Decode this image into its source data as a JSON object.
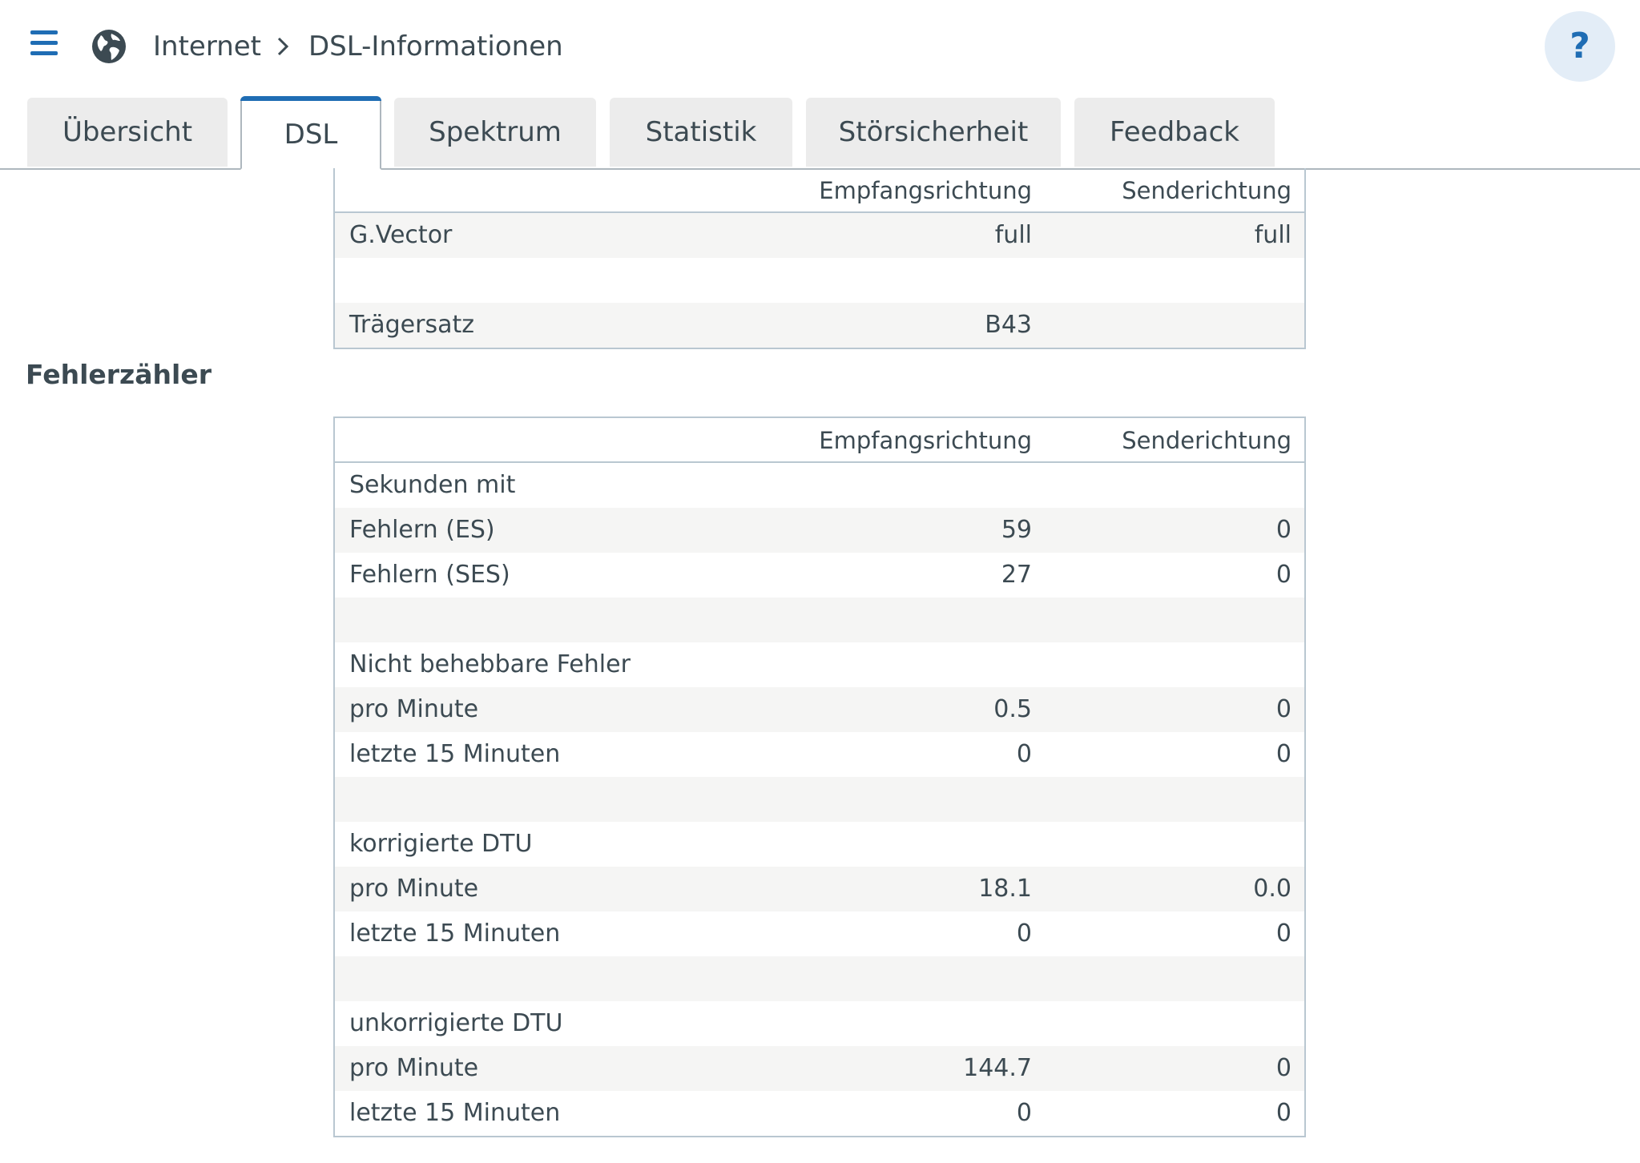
{
  "header": {
    "breadcrumb": [
      "Internet",
      "DSL-Informationen"
    ],
    "help_label": "?",
    "icons": [
      "menu-icon",
      "globe-icon",
      "chevron-right-icon"
    ]
  },
  "tabs": [
    {
      "label": "Übersicht",
      "active": false
    },
    {
      "label": "DSL",
      "active": true
    },
    {
      "label": "Spektrum",
      "active": false
    },
    {
      "label": "Statistik",
      "active": false
    },
    {
      "label": "Störsicherheit",
      "active": false
    },
    {
      "label": "Feedback",
      "active": false
    }
  ],
  "top_table": {
    "headers": [
      "",
      "Empfangsrichtung",
      "Senderichtung"
    ],
    "rows": [
      [
        "G.Vector",
        "full",
        "full"
      ],
      [
        "",
        "",
        ""
      ],
      [
        "Trägersatz",
        "B43",
        ""
      ]
    ]
  },
  "error_section": {
    "title": "Fehlerzähler",
    "headers": [
      "",
      "Empfangsrichtung",
      "Senderichtung"
    ],
    "rows": [
      [
        "Sekunden mit",
        "",
        ""
      ],
      [
        "Fehlern (ES)",
        "59",
        "0"
      ],
      [
        "Fehlern (SES)",
        "27",
        "0"
      ],
      [
        "",
        "",
        ""
      ],
      [
        "Nicht behebbare Fehler",
        "",
        ""
      ],
      [
        "pro Minute",
        "0.5",
        "0"
      ],
      [
        "letzte 15 Minuten",
        "0",
        "0"
      ],
      [
        "",
        "",
        ""
      ],
      [
        "korrigierte DTU",
        "",
        ""
      ],
      [
        "pro Minute",
        "18.1",
        "0.0"
      ],
      [
        "letzte 15 Minuten",
        "0",
        "0"
      ],
      [
        "",
        "",
        ""
      ],
      [
        "unkorrigierte DTU",
        "",
        ""
      ],
      [
        "pro Minute",
        "144.7",
        "0"
      ],
      [
        "letzte 15 Minuten",
        "0",
        "0"
      ]
    ]
  },
  "colors": {
    "accent": "#1f6db4",
    "text": "#3c4a52",
    "tab_bg": "#ececec",
    "row_alt": "#f5f5f4",
    "border": "#b9c7d1"
  }
}
